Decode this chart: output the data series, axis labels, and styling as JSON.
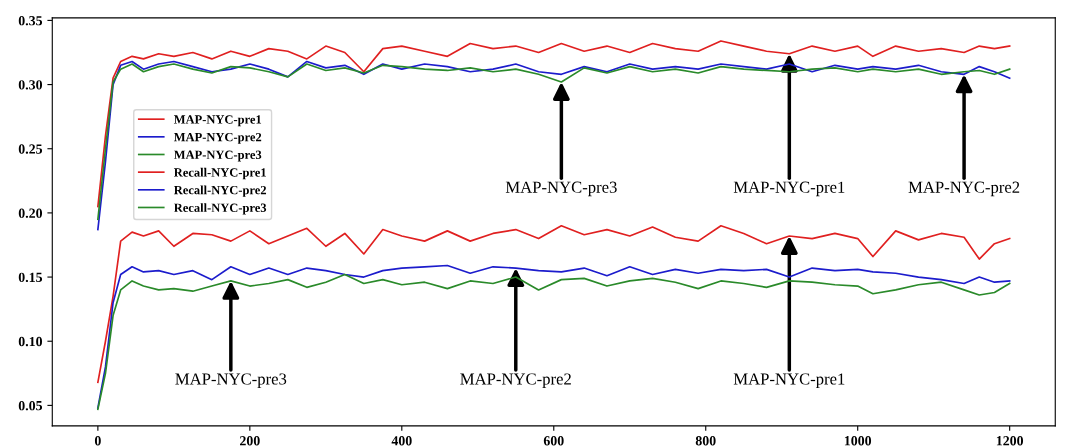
{
  "chart_data": {
    "type": "line",
    "x": [
      0,
      10,
      20,
      30,
      45,
      60,
      80,
      100,
      125,
      150,
      175,
      200,
      225,
      250,
      275,
      300,
      325,
      350,
      375,
      400,
      430,
      460,
      490,
      520,
      550,
      580,
      610,
      640,
      670,
      700,
      730,
      760,
      790,
      820,
      850,
      880,
      910,
      940,
      970,
      1000,
      1020,
      1050,
      1080,
      1110,
      1140,
      1160,
      1180,
      1200
    ],
    "series": [
      {
        "name": "MAP-NYC-pre1",
        "color": "#e02020",
        "values": [
          0.068,
          0.1,
          0.135,
          0.178,
          0.185,
          0.182,
          0.186,
          0.174,
          0.184,
          0.183,
          0.178,
          0.186,
          0.176,
          0.182,
          0.188,
          0.174,
          0.184,
          0.168,
          0.187,
          0.182,
          0.178,
          0.186,
          0.178,
          0.184,
          0.187,
          0.18,
          0.19,
          0.183,
          0.187,
          0.182,
          0.189,
          0.181,
          0.178,
          0.19,
          0.184,
          0.176,
          0.182,
          0.18,
          0.184,
          0.18,
          0.166,
          0.186,
          0.179,
          0.184,
          0.181,
          0.164,
          0.176,
          0.18
        ]
      },
      {
        "name": "MAP-NYC-pre2",
        "color": "#1c1ccc",
        "values": [
          0.048,
          0.08,
          0.13,
          0.152,
          0.158,
          0.154,
          0.155,
          0.152,
          0.155,
          0.148,
          0.158,
          0.152,
          0.157,
          0.152,
          0.157,
          0.155,
          0.152,
          0.15,
          0.155,
          0.157,
          0.158,
          0.159,
          0.153,
          0.158,
          0.157,
          0.155,
          0.154,
          0.157,
          0.151,
          0.158,
          0.152,
          0.156,
          0.153,
          0.156,
          0.155,
          0.156,
          0.15,
          0.157,
          0.155,
          0.156,
          0.154,
          0.153,
          0.15,
          0.148,
          0.145,
          0.15,
          0.146,
          0.147
        ]
      },
      {
        "name": "MAP-NYC-pre3",
        "color": "#2a8a2a",
        "values": [
          0.047,
          0.075,
          0.12,
          0.14,
          0.147,
          0.143,
          0.14,
          0.141,
          0.139,
          0.143,
          0.147,
          0.143,
          0.145,
          0.148,
          0.142,
          0.146,
          0.152,
          0.145,
          0.148,
          0.144,
          0.146,
          0.141,
          0.147,
          0.145,
          0.15,
          0.14,
          0.148,
          0.149,
          0.143,
          0.147,
          0.149,
          0.146,
          0.141,
          0.147,
          0.145,
          0.142,
          0.147,
          0.146,
          0.144,
          0.143,
          0.137,
          0.14,
          0.144,
          0.146,
          0.14,
          0.136,
          0.138,
          0.145
        ]
      },
      {
        "name": "Recall-NYC-pre1",
        "color": "#e02020",
        "values": [
          0.205,
          0.26,
          0.305,
          0.318,
          0.322,
          0.32,
          0.324,
          0.322,
          0.325,
          0.32,
          0.326,
          0.322,
          0.328,
          0.326,
          0.32,
          0.33,
          0.325,
          0.31,
          0.328,
          0.33,
          0.326,
          0.322,
          0.332,
          0.328,
          0.33,
          0.325,
          0.332,
          0.326,
          0.33,
          0.325,
          0.332,
          0.328,
          0.326,
          0.334,
          0.33,
          0.326,
          0.324,
          0.33,
          0.326,
          0.33,
          0.322,
          0.33,
          0.326,
          0.328,
          0.325,
          0.33,
          0.328,
          0.33
        ]
      },
      {
        "name": "Recall-NYC-pre2",
        "color": "#1c1ccc",
        "values": [
          0.187,
          0.24,
          0.3,
          0.315,
          0.318,
          0.312,
          0.316,
          0.318,
          0.314,
          0.31,
          0.312,
          0.316,
          0.312,
          0.306,
          0.318,
          0.313,
          0.315,
          0.308,
          0.316,
          0.312,
          0.316,
          0.314,
          0.31,
          0.312,
          0.316,
          0.31,
          0.308,
          0.314,
          0.31,
          0.316,
          0.312,
          0.314,
          0.312,
          0.316,
          0.314,
          0.312,
          0.316,
          0.31,
          0.315,
          0.312,
          0.314,
          0.312,
          0.315,
          0.31,
          0.308,
          0.314,
          0.31,
          0.305
        ]
      },
      {
        "name": "Recall-NYC-pre3",
        "color": "#2a8a2a",
        "values": [
          0.195,
          0.25,
          0.302,
          0.312,
          0.316,
          0.31,
          0.314,
          0.316,
          0.312,
          0.309,
          0.314,
          0.313,
          0.31,
          0.306,
          0.316,
          0.311,
          0.313,
          0.309,
          0.315,
          0.314,
          0.312,
          0.311,
          0.313,
          0.31,
          0.312,
          0.308,
          0.302,
          0.313,
          0.309,
          0.314,
          0.31,
          0.312,
          0.309,
          0.314,
          0.312,
          0.311,
          0.31,
          0.312,
          0.313,
          0.31,
          0.312,
          0.31,
          0.312,
          0.308,
          0.31,
          0.311,
          0.308,
          0.312
        ]
      }
    ],
    "annotations": [
      {
        "text": "MAP-NYC-pre3",
        "x": 610,
        "y": 0.302
      },
      {
        "text": "MAP-NYC-pre1",
        "x": 910,
        "y": 0.324
      },
      {
        "text": "MAP-NYC-pre2",
        "x": 1140,
        "y": 0.308
      },
      {
        "text": "MAP-NYC-pre3",
        "x": 175,
        "y": 0.147
      },
      {
        "text": "MAP-NYC-pre2",
        "x": 550,
        "y": 0.157
      },
      {
        "text": "MAP-NYC-pre1",
        "x": 910,
        "y": 0.182
      }
    ],
    "xlim": [
      -60,
      1260
    ],
    "ylim": [
      0.034,
      0.352
    ],
    "xticks": [
      0,
      200,
      400,
      600,
      800,
      1000,
      1200
    ],
    "yticks": [
      0.05,
      {
        "value": 0.1,
        "label": "0.10"
      },
      0.15,
      {
        "value": 0.2,
        "label": "0.20"
      },
      0.25,
      {
        "value": 0.3,
        "label": "0.30"
      },
      0.35
    ],
    "legend": "top left",
    "grid": false,
    "marker": "none",
    "line_style": "solid"
  }
}
